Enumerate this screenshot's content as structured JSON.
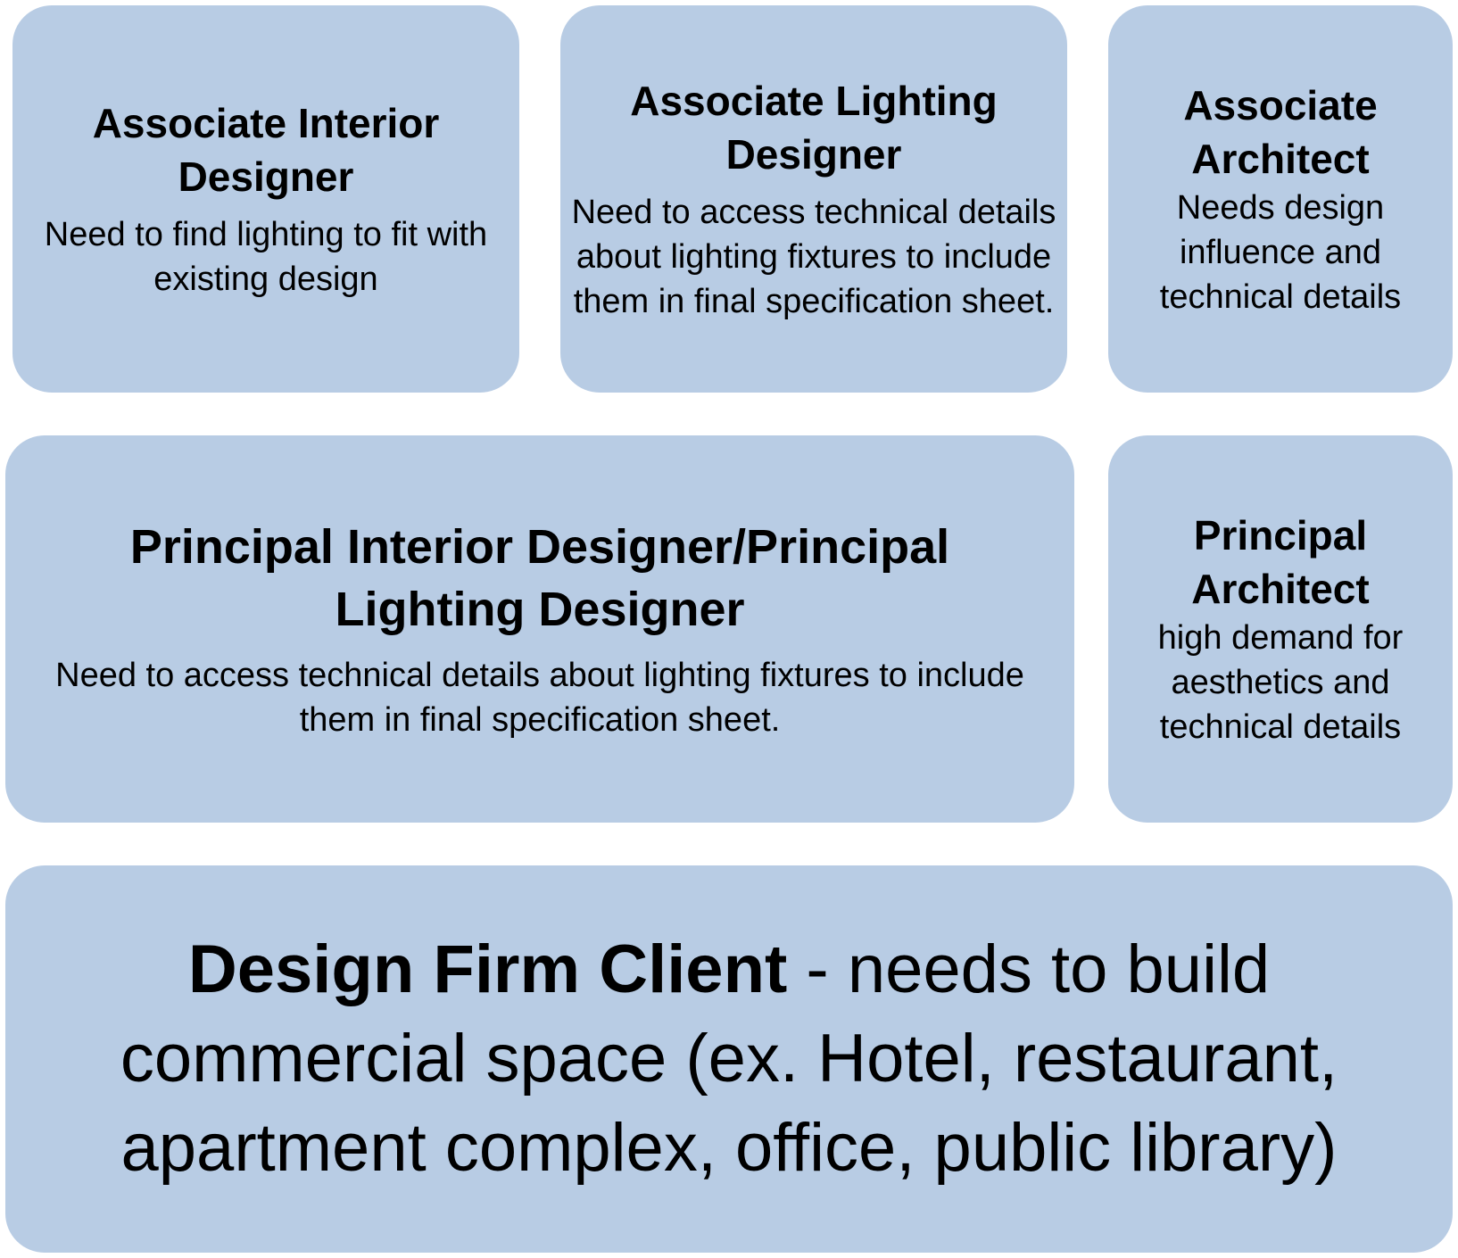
{
  "boxes": {
    "associate_interior_designer": {
      "title": "Associate Interior Designer",
      "description": "Need to find lighting to fit with existing design"
    },
    "associate_lighting_designer": {
      "title": "Associate Lighting Designer",
      "description": "Need to access technical details about lighting fixtures to include them in final specification sheet."
    },
    "associate_architect": {
      "title": "Associate Architect",
      "description": "Needs design influence and technical details"
    },
    "principal_interior_lighting_designer": {
      "title": "Principal Interior Designer/Principal Lighting Designer",
      "description": "Need to access technical details about lighting fixtures to include them in final specification sheet."
    },
    "principal_architect": {
      "title": "Principal Architect",
      "description": "high demand for aesthetics and technical details"
    },
    "design_firm_client": {
      "title": "Design Firm Client",
      "description": " - needs to build commercial space (ex. Hotel, restaurant, apartment complex, office, public library)"
    }
  },
  "colors": {
    "box_fill": "#b8cce4",
    "text": "#000000",
    "background": "#ffffff"
  }
}
